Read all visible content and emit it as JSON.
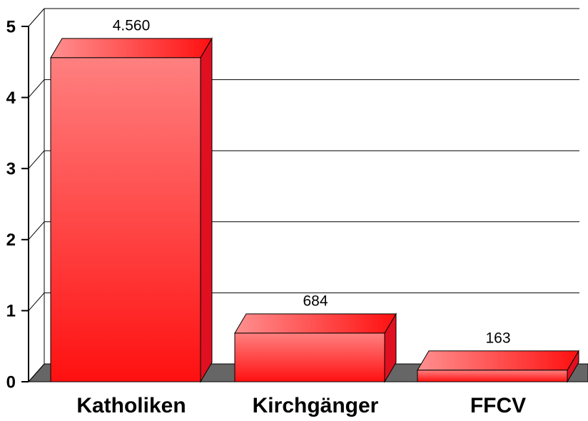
{
  "chart_data": {
    "type": "bar",
    "categories": [
      "Katholiken",
      "Kirchgänger",
      "FFCV"
    ],
    "values": [
      4.56,
      0.684,
      0.163
    ],
    "value_labels": [
      "4.560",
      "684",
      "163"
    ],
    "color": "#ff0000",
    "ylim": [
      0,
      5
    ],
    "yticks": [
      0,
      1,
      2,
      3,
      4,
      5
    ],
    "grid": true
  }
}
